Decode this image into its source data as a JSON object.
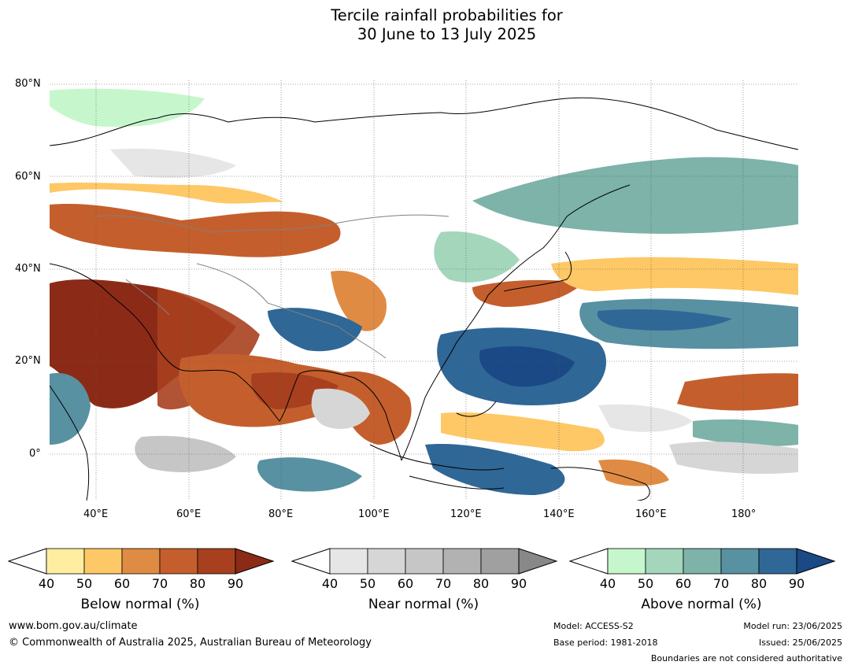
{
  "title": {
    "line1": "Tercile rainfall probabilities for",
    "line2": "30 June to 13 July 2025"
  },
  "map": {
    "lat_labels": [
      "80°N",
      "60°N",
      "40°N",
      "20°N",
      "0°"
    ],
    "lon_labels": [
      "40°E",
      "60°E",
      "80°E",
      "100°E",
      "120°E",
      "140°E",
      "160°E",
      "180°"
    ],
    "extent": {
      "lon": [
        30,
        192
      ],
      "lat": [
        -10,
        81
      ]
    },
    "colors": {
      "below": [
        "#ffeea0",
        "#fdc865",
        "#e08b44",
        "#c45f2d",
        "#a8401f",
        "#8b2b17"
      ],
      "near": [
        "#e6e6e6",
        "#d6d6d6",
        "#c6c6c6",
        "#b2b2b2",
        "#a0a0a0",
        "#888888"
      ],
      "above": [
        "#c6f7cc",
        "#a4d6bc",
        "#7db3a9",
        "#5891a1",
        "#2f6797",
        "#1a4986"
      ]
    }
  },
  "legend": {
    "ticks": [
      "40",
      "50",
      "60",
      "70",
      "80",
      "90"
    ],
    "below_title": "Below normal (%)",
    "near_title": "Near normal (%)",
    "above_title": "Above normal (%)"
  },
  "footer": {
    "website": "www.bom.gov.au/climate",
    "copyright": "© Commonwealth of Australia 2025, Australian Bureau of Meteorology",
    "model": "Model: ACCESS-S2",
    "base_period": "Base period: 1981-2018",
    "model_run": "Model run: 23/06/2025",
    "issued": "Issued: 25/06/2025",
    "disclaimer": "Boundaries are not considered authoritative"
  }
}
